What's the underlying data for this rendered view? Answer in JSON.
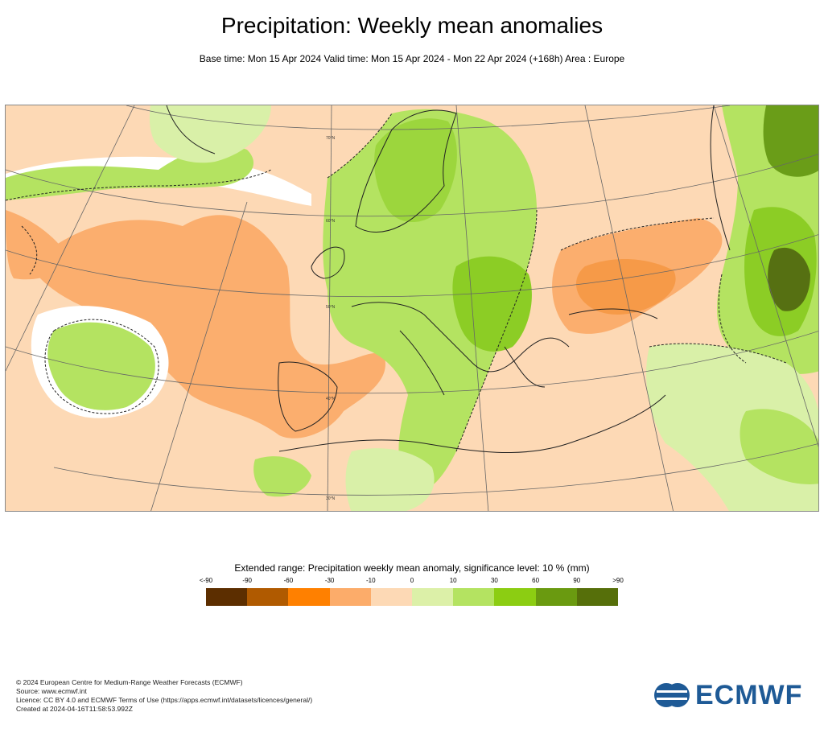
{
  "title": "Precipitation: Weekly mean anomalies",
  "subtitle": "Base time: Mon 15 Apr 2024 Valid time: Mon 15 Apr 2024 - Mon 22 Apr 2024 (+168h) Area : Europe",
  "map": {
    "lat_labels": [
      "70°N",
      "60°N",
      "50°N",
      "40°N",
      "30°N"
    ],
    "colors": {
      "ocean_background": "#fdd9b5",
      "dry_10": "#fbae6e",
      "dry_30": "#f38a2a",
      "neutral": "#ffffff",
      "wet_0": "#d9f0a8",
      "wet_10": "#b4e361",
      "wet_30": "#8ccd25",
      "wet_60": "#6a9d18",
      "wet_90": "#567012"
    }
  },
  "legend": {
    "title": "Extended range: Precipitation weekly mean anomaly, significance level: 10 % (mm)",
    "ticks": [
      "<-90",
      "-90",
      "-60",
      "-30",
      "-10",
      "0",
      "10",
      "30",
      "60",
      "90",
      ">90"
    ],
    "colors": [
      "#5c2e00",
      "#b05a00",
      "#ff8000",
      "#fcac6a",
      "#fdd9b5",
      "#dcf0a8",
      "#b4e361",
      "#8ccd12",
      "#6a9a10",
      "#566f0a"
    ]
  },
  "footer": {
    "copyright": "© 2024 European Centre for Medium-Range Weather Forecasts (ECMWF)",
    "source": "Source: www.ecmwf.int",
    "licence": "Licence: CC BY 4.0 and ECMWF Terms of Use (https://apps.ecmwf.int/datasets/licences/general/)",
    "created": "Created at 2024-04-16T11:58:53.992Z"
  },
  "logo": {
    "text": "ECMWF",
    "color": "#1e5a96"
  }
}
